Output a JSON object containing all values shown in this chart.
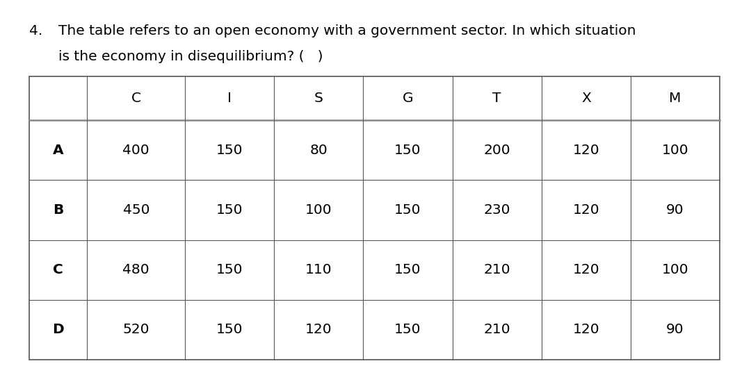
{
  "question_number": "4.",
  "question_text_line1": "The table refers to an open economy with a government sector. In which situation",
  "question_text_line2": "is the economy in disequilibrium? (   )",
  "col_headers": [
    "",
    "C",
    "I",
    "S",
    "G",
    "T",
    "X",
    "M"
  ],
  "rows": [
    [
      "A",
      "400",
      "150",
      "80",
      "150",
      "200",
      "120",
      "100"
    ],
    [
      "B",
      "450",
      "150",
      "100",
      "150",
      "230",
      "120",
      "90"
    ],
    [
      "C",
      "480",
      "150",
      "110",
      "150",
      "210",
      "120",
      "100"
    ],
    [
      "D",
      "520",
      "150",
      "120",
      "150",
      "210",
      "120",
      "90"
    ]
  ],
  "background_color": "#ffffff",
  "text_color": "#000000",
  "table_line_color": "#555555",
  "header_line_color": "#888888",
  "font_size_question": 14.5,
  "font_size_table": 14.5,
  "fig_width": 10.8,
  "fig_height": 5.53
}
